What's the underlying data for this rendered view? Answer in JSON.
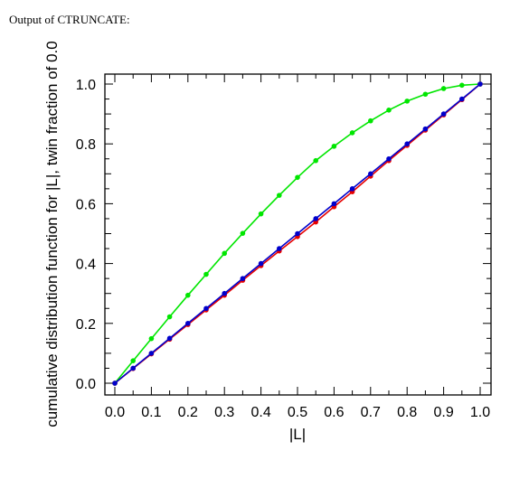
{
  "header": {
    "title": "Output of CTRUNCATE:"
  },
  "chart_data": {
    "type": "line",
    "title": "",
    "xlabel": "|L|",
    "ylabel": "cumulative distribution function for |L|, twin fraction of 0.0",
    "xlim": [
      0,
      1
    ],
    "ylim": [
      0,
      1
    ],
    "xticks": [
      "0.0",
      "0.1",
      "0.2",
      "0.3",
      "0.4",
      "0.5",
      "0.6",
      "0.7",
      "0.8",
      "0.9",
      "1.0"
    ],
    "yticks": [
      "0.0",
      "0.2",
      "0.4",
      "0.6",
      "0.8",
      "1.0"
    ],
    "grid": false,
    "legend": "none",
    "x": [
      0.0,
      0.05,
      0.1,
      0.15,
      0.2,
      0.25,
      0.3,
      0.35,
      0.4,
      0.45,
      0.5,
      0.55,
      0.6,
      0.65,
      0.7,
      0.75,
      0.8,
      0.85,
      0.9,
      0.95,
      1.0
    ],
    "series": [
      {
        "color": "#00e600",
        "values": [
          0.0,
          0.075,
          0.149,
          0.222,
          0.294,
          0.364,
          0.434,
          0.501,
          0.566,
          0.628,
          0.688,
          0.744,
          0.792,
          0.837,
          0.877,
          0.913,
          0.943,
          0.966,
          0.985,
          0.996,
          1.0
        ]
      },
      {
        "color": "#e60000",
        "values": [
          0.0,
          0.049,
          0.098,
          0.147,
          0.196,
          0.245,
          0.294,
          0.344,
          0.393,
          0.442,
          0.49,
          0.539,
          0.59,
          0.64,
          0.692,
          0.744,
          0.795,
          0.846,
          0.897,
          0.948,
          1.0
        ]
      },
      {
        "color": "#0000cc",
        "values": [
          0.0,
          0.05,
          0.1,
          0.15,
          0.2,
          0.25,
          0.3,
          0.35,
          0.4,
          0.45,
          0.5,
          0.55,
          0.6,
          0.65,
          0.7,
          0.75,
          0.8,
          0.85,
          0.9,
          0.95,
          1.0
        ]
      }
    ]
  }
}
